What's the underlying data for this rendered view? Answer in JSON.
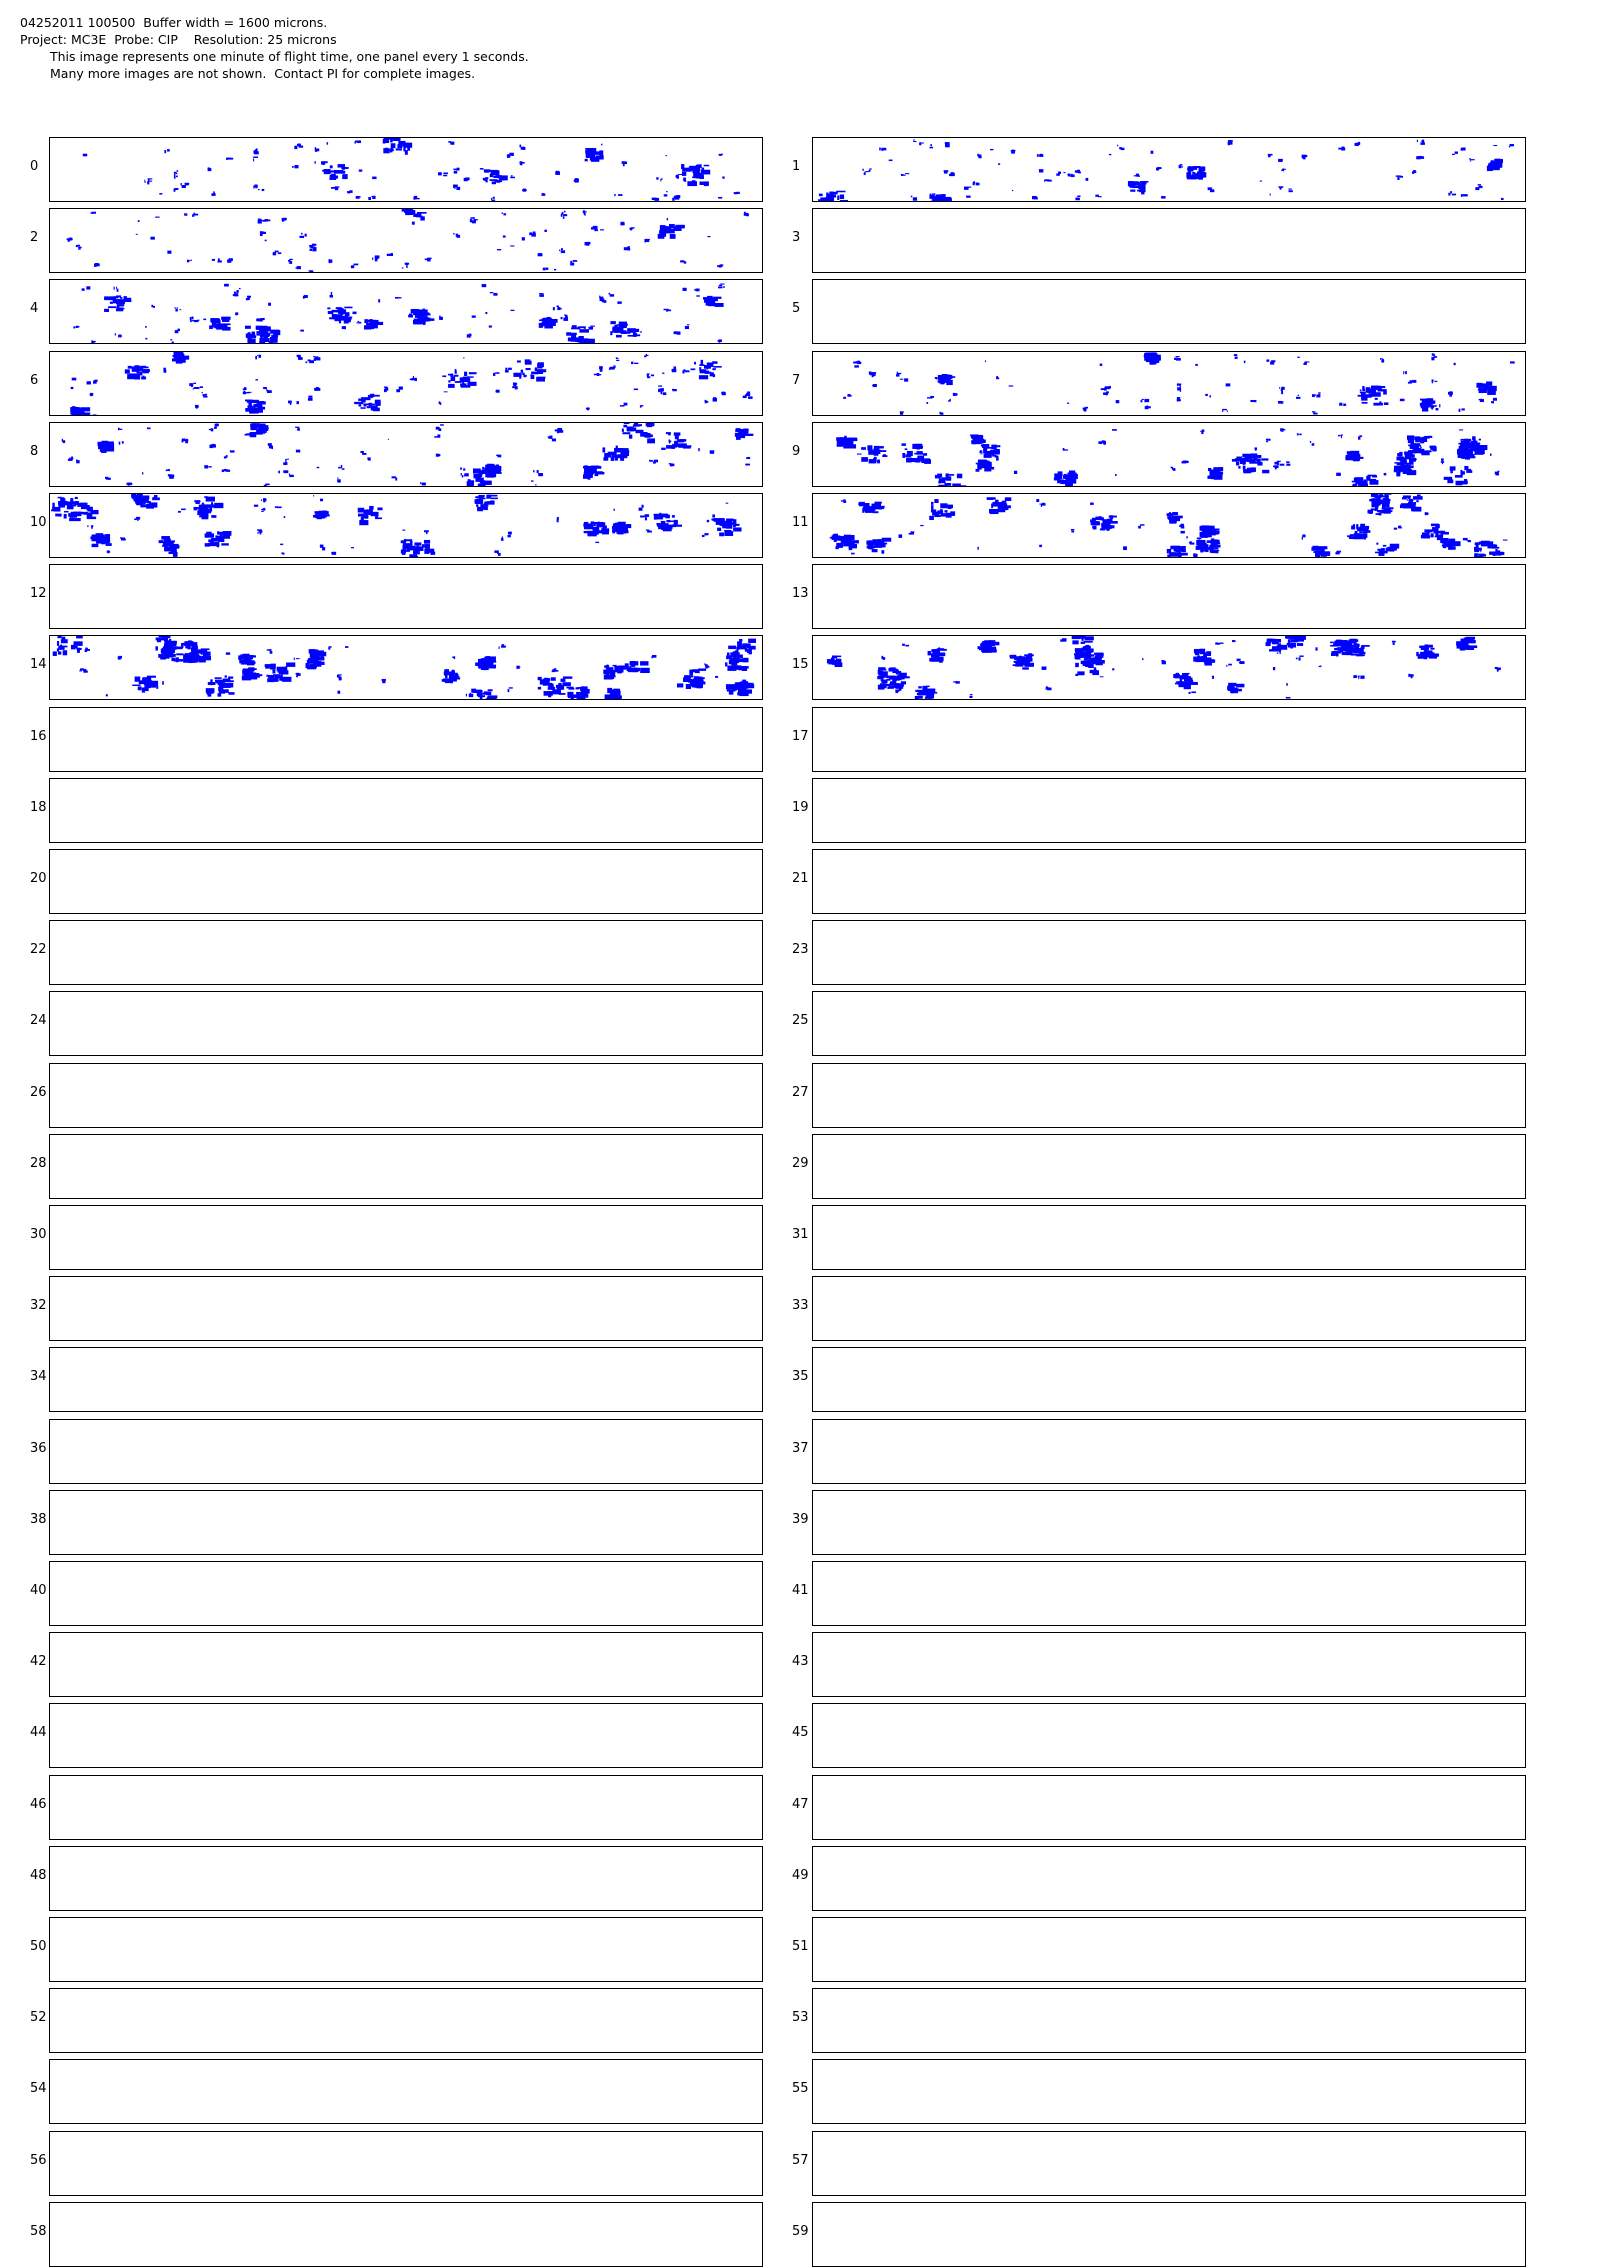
{
  "header": {
    "line1": "04252011 100500  Buffer width = 1600 microns.",
    "line2": "Project: MC3E  Probe: CIP    Resolution: 25 microns",
    "line3": "This image represents one minute of flight time, one panel every 1 seconds.",
    "line4": "Many more images are not shown.  Contact PI for complete images."
  },
  "particle_color": "#0000ff",
  "panels": [
    {
      "label": "0",
      "density": "medium"
    },
    {
      "label": "1",
      "density": "medium"
    },
    {
      "label": "2",
      "density": "medium"
    },
    {
      "label": "3",
      "density": "none"
    },
    {
      "label": "4",
      "density": "medium"
    },
    {
      "label": "5",
      "density": "none"
    },
    {
      "label": "6",
      "density": "medium"
    },
    {
      "label": "7",
      "density": "medium"
    },
    {
      "label": "8",
      "density": "medium"
    },
    {
      "label": "9",
      "density": "high"
    },
    {
      "label": "10",
      "density": "high"
    },
    {
      "label": "11",
      "density": "high"
    },
    {
      "label": "12",
      "density": "none"
    },
    {
      "label": "13",
      "density": "none"
    },
    {
      "label": "14",
      "density": "high"
    },
    {
      "label": "15",
      "density": "high"
    },
    {
      "label": "16",
      "density": "none"
    },
    {
      "label": "17",
      "density": "none"
    },
    {
      "label": "18",
      "density": "none"
    },
    {
      "label": "19",
      "density": "none"
    },
    {
      "label": "20",
      "density": "none"
    },
    {
      "label": "21",
      "density": "none"
    },
    {
      "label": "22",
      "density": "none"
    },
    {
      "label": "23",
      "density": "none"
    },
    {
      "label": "24",
      "density": "none"
    },
    {
      "label": "25",
      "density": "none"
    },
    {
      "label": "26",
      "density": "none"
    },
    {
      "label": "27",
      "density": "none"
    },
    {
      "label": "28",
      "density": "none"
    },
    {
      "label": "29",
      "density": "none"
    },
    {
      "label": "30",
      "density": "none"
    },
    {
      "label": "31",
      "density": "none"
    },
    {
      "label": "32",
      "density": "none"
    },
    {
      "label": "33",
      "density": "none"
    },
    {
      "label": "34",
      "density": "none"
    },
    {
      "label": "35",
      "density": "none"
    },
    {
      "label": "36",
      "density": "none"
    },
    {
      "label": "37",
      "density": "none"
    },
    {
      "label": "38",
      "density": "none"
    },
    {
      "label": "39",
      "density": "none"
    },
    {
      "label": "40",
      "density": "none"
    },
    {
      "label": "41",
      "density": "none"
    },
    {
      "label": "42",
      "density": "none"
    },
    {
      "label": "43",
      "density": "none"
    },
    {
      "label": "44",
      "density": "none"
    },
    {
      "label": "45",
      "density": "none"
    },
    {
      "label": "46",
      "density": "none"
    },
    {
      "label": "47",
      "density": "none"
    },
    {
      "label": "48",
      "density": "none"
    },
    {
      "label": "49",
      "density": "none"
    },
    {
      "label": "50",
      "density": "none"
    },
    {
      "label": "51",
      "density": "none"
    },
    {
      "label": "52",
      "density": "none"
    },
    {
      "label": "53",
      "density": "none"
    },
    {
      "label": "54",
      "density": "none"
    },
    {
      "label": "55",
      "density": "none"
    },
    {
      "label": "56",
      "density": "none"
    },
    {
      "label": "57",
      "density": "none"
    },
    {
      "label": "58",
      "density": "none"
    },
    {
      "label": "59",
      "density": "none"
    }
  ]
}
